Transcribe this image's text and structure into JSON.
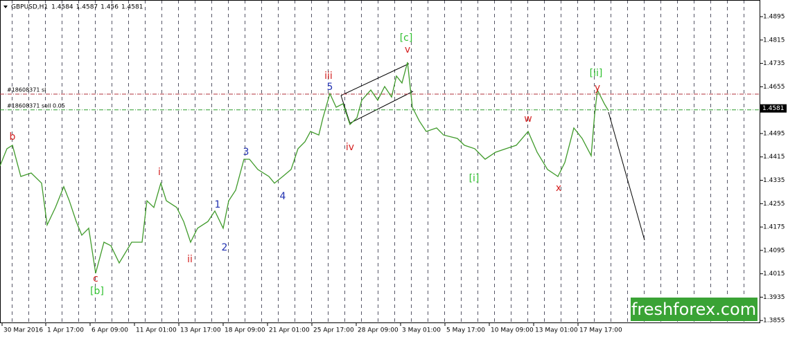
{
  "chart_data": {
    "type": "line",
    "title": "GBPUSD,H1",
    "quote": [
      1.4584,
      1.4587,
      1.456,
      1.4581
    ],
    "x": [
      0,
      10,
      18,
      30,
      45,
      60,
      68,
      80,
      92,
      100,
      110,
      118,
      128,
      138,
      150,
      160,
      172,
      190,
      205,
      212,
      222,
      232,
      240,
      255,
      265,
      275,
      285,
      300,
      310,
      322,
      330,
      340,
      352,
      360,
      372,
      388,
      396,
      408,
      420,
      430,
      440,
      448,
      460,
      466,
      476,
      485,
      495,
      505,
      515,
      522,
      535,
      545,
      555,
      565,
      572,
      580,
      588,
      595,
      605,
      615,
      630,
      640,
      660,
      670,
      685,
      700,
      715,
      730,
      745,
      762,
      775,
      790,
      805,
      815,
      828,
      840,
      853,
      858,
      862,
      872,
      878
    ],
    "series": [
      {
        "color": "#3f9a2a",
        "values": [
          1.4384,
          1.4443,
          1.4455,
          1.4348,
          1.436,
          1.4325,
          1.4182,
          1.4242,
          1.4313,
          1.4265,
          1.4194,
          1.4147,
          1.4171,
          1.4017,
          1.4123,
          1.4111,
          1.4052,
          1.4123,
          1.4123,
          1.4265,
          1.4242,
          1.4325,
          1.4265,
          1.4242,
          1.4194,
          1.4123,
          1.4171,
          1.4194,
          1.423,
          1.4171,
          1.4265,
          1.4301,
          1.4407,
          1.4407,
          1.4372,
          1.4348,
          1.4325,
          1.4348,
          1.4372,
          1.4443,
          1.4467,
          1.4502,
          1.449,
          1.4549,
          1.4632,
          1.4585,
          1.4597,
          1.4526,
          1.4549,
          1.4609,
          1.4644,
          1.4609,
          1.4656,
          1.462,
          1.4692,
          1.4668,
          1.4739,
          1.4585,
          1.4538,
          1.4502,
          1.4514,
          1.449,
          1.4478,
          1.4455,
          1.4443,
          1.4407,
          1.4431,
          1.4443,
          1.4455,
          1.4502,
          1.4431,
          1.4372,
          1.4348,
          1.4396,
          1.4514,
          1.4478,
          1.4419,
          1.4561,
          1.4644,
          1.4597,
          1.4573
        ]
      }
    ],
    "xlim": [
      0,
      1097
    ],
    "ylim": [
      1.3846,
      1.4952
    ],
    "yticks": [
      1.4895,
      1.4815,
      1.4735,
      1.4655,
      1.4495,
      1.4415,
      1.4335,
      1.4255,
      1.4175,
      1.4095,
      1.4015,
      1.3935,
      1.3855
    ],
    "xticks": [
      {
        "value": 3,
        "label": "30 Mar 2016"
      },
      {
        "value": 66,
        "label": "1 Apr 17:00"
      },
      {
        "value": 130,
        "label": "6 Apr 09:00"
      },
      {
        "value": 194,
        "label": "11 Apr 01:00"
      },
      {
        "value": 258,
        "label": "13 Apr 17:00"
      },
      {
        "value": 322,
        "label": "18 Apr 09:00"
      },
      {
        "value": 386,
        "label": "21 Apr 01:00"
      },
      {
        "value": 450,
        "label": "25 Apr 17:00"
      },
      {
        "value": 514,
        "label": "28 Apr 09:00"
      },
      {
        "value": 578,
        "label": "3 May 01:00"
      },
      {
        "value": 642,
        "label": "5 May 17:00"
      },
      {
        "value": 706,
        "label": "10 May 09:00"
      },
      {
        "value": 770,
        "label": "13 May 01:00"
      },
      {
        "value": 834,
        "label": "17 May 17:00"
      }
    ],
    "current_price": 1.4581,
    "levels": [
      {
        "label": "#18608371 sl",
        "value": 1.463,
        "color": "#b0303a"
      },
      {
        "label": "#18608371 sell 0.05",
        "value": 1.4576,
        "color": "#2a9a2a"
      }
    ],
    "annotations": [
      {
        "text": "b",
        "color": "#d42020"
      },
      {
        "text": "c",
        "color": "#d42020"
      },
      {
        "text": "[b]",
        "color": "#30c030"
      },
      {
        "text": "i",
        "color": "#d42020"
      },
      {
        "text": "ii",
        "color": "#d42020"
      },
      {
        "text": "1",
        "color": "#2030b0"
      },
      {
        "text": "2",
        "color": "#2030b0"
      },
      {
        "text": "3",
        "color": "#2030b0"
      },
      {
        "text": "4",
        "color": "#2030b0"
      },
      {
        "text": "iii",
        "color": "#d42020"
      },
      {
        "text": "5",
        "color": "#2030b0"
      },
      {
        "text": "iv",
        "color": "#d42020"
      },
      {
        "text": "[c]",
        "color": "#30c030"
      },
      {
        "text": "v",
        "color": "#d42020"
      },
      {
        "text": "[i]",
        "color": "#30c030"
      },
      {
        "text": "w",
        "color": "#d42020"
      },
      {
        "text": "x",
        "color": "#d42020"
      },
      {
        "text": "[ii]",
        "color": "#30c030"
      },
      {
        "text": "y",
        "color": "#d42020"
      }
    ],
    "watermark": "freshforex.com"
  }
}
